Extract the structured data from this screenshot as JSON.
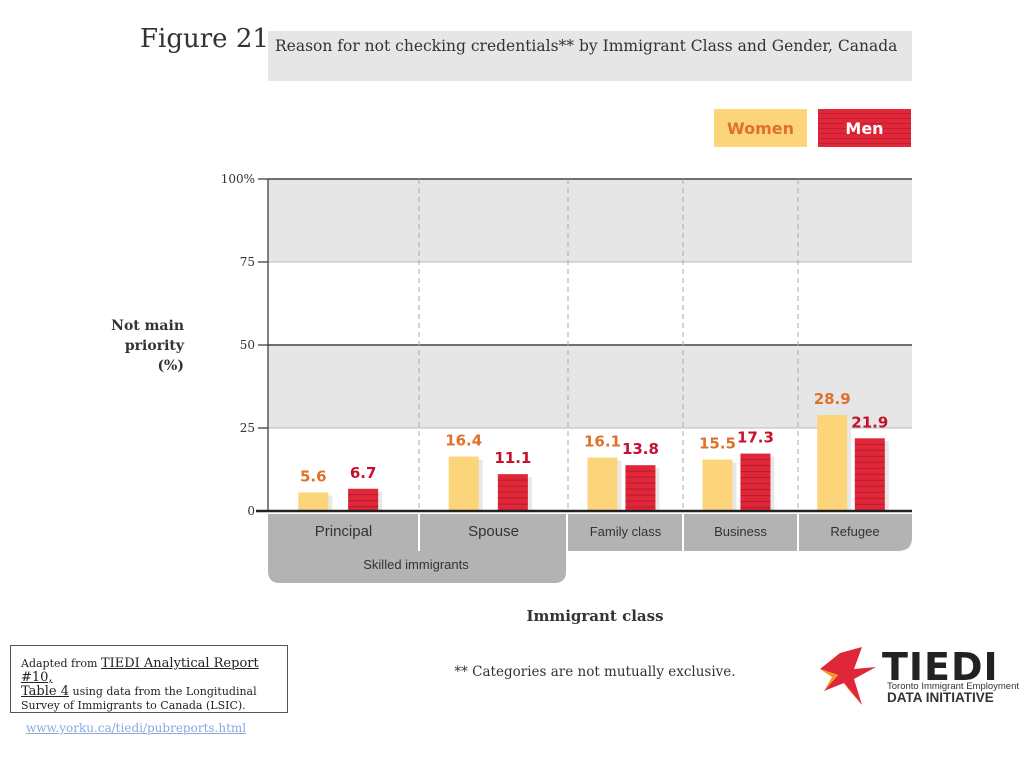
{
  "figure": {
    "number": "Figure 21:",
    "title": "Reason for not checking credentials** by Immigrant Class and Gender, Canada"
  },
  "legend": {
    "women": "Women",
    "men": "Men"
  },
  "colors": {
    "women": "#fcd47a",
    "men": "#e0273a",
    "women_label": "#e0702a",
    "men_label": "#c8102e",
    "band": "#e6e6e6",
    "category_box": "#b3b3b3"
  },
  "chart_data": {
    "type": "bar",
    "title": "Reason for not checking credentials** by Immigrant Class and Gender, Canada",
    "ylabel": "Not main priority (%)",
    "xlabel": "Immigrant class",
    "ylim": [
      0,
      100
    ],
    "yticks": [
      "0",
      "25",
      "50",
      "75",
      "100%"
    ],
    "ytick_values": [
      0,
      25,
      50,
      75,
      100
    ],
    "categories": [
      "Principal",
      "Spouse",
      "Family class",
      "Business",
      "Refugee"
    ],
    "group_label": "Skilled immigrants",
    "grouped_categories": [
      "Principal",
      "Spouse"
    ],
    "series": [
      {
        "name": "Women",
        "values": [
          5.6,
          16.4,
          16.1,
          15.5,
          28.9
        ]
      },
      {
        "name": "Men",
        "values": [
          6.7,
          11.1,
          13.8,
          17.3,
          21.9
        ]
      }
    ],
    "value_labels": {
      "Women": [
        "5.6",
        "16.4",
        "16.1",
        "15.5",
        "28.9"
      ],
      "Men": [
        "6.7",
        "11.1",
        "13.8",
        "17.3",
        "21.9"
      ]
    },
    "grid": "alternating horizontal bands",
    "legend_position": "top-right"
  },
  "axis_title_lines": [
    "Not main",
    "priority",
    "(%)"
  ],
  "x_axis_title": "Immigrant class",
  "footnote": "** Categories are not mutually exclusive.",
  "source": {
    "prefix": "Adapted from ",
    "link1": "TIEDI Analytical Report #10,",
    "link2": "Table 4",
    "rest": " using data from the Longitudinal Survey of Immigrants to Canada (LSIC)."
  },
  "url": "www.yorku.ca/tiedi/pubreports.html",
  "logo": {
    "word": "TIEDI",
    "line1": "Toronto Immigrant Employment",
    "line2": "DATA INITIATIVE"
  }
}
